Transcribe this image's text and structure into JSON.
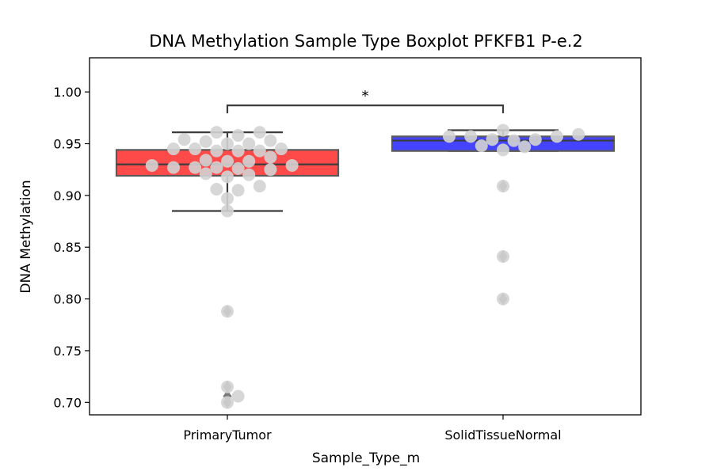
{
  "chart_data": {
    "type": "boxplot",
    "title": "DNA Methylation Sample Type Boxplot PFKFB1 P-e.2",
    "xlabel": "Sample_Type_m",
    "ylabel": "DNA Methylation",
    "ylim": [
      0.688,
      1.033
    ],
    "yticks": [
      "0.70",
      "0.75",
      "0.80",
      "0.85",
      "0.90",
      "0.95",
      "1.00"
    ],
    "categories": [
      "PrimaryTumor",
      "SolidTissueNormal"
    ],
    "grid": false,
    "boxes": [
      {
        "category": "PrimaryTumor",
        "color": "#ff4a4a",
        "q1": 0.919,
        "median": 0.93,
        "q3": 0.944,
        "whisker_low": 0.885,
        "whisker_high": 0.961,
        "outliers": [
          0.788,
          0.715,
          0.706,
          0.7
        ]
      },
      {
        "category": "SolidTissueNormal",
        "color": "#4444ff",
        "q1": 0.943,
        "median": 0.953,
        "q3": 0.957,
        "whisker_low": 0.943,
        "whisker_high": 0.963,
        "outliers": [
          0.909,
          0.841,
          0.8
        ]
      }
    ],
    "points": [
      {
        "category": "PrimaryTumor",
        "values": [
          0.961,
          0.958,
          0.961,
          0.952,
          0.95,
          0.954,
          0.953,
          0.95,
          0.945,
          0.943,
          0.945,
          0.943,
          0.943,
          0.945,
          0.937,
          0.934,
          0.933,
          0.933,
          0.929,
          0.927,
          0.926,
          0.927,
          0.925,
          0.929,
          0.927,
          0.921,
          0.92,
          0.918,
          0.906,
          0.897,
          0.905,
          0.909,
          0.885,
          0.788,
          0.715,
          0.706,
          0.7
        ]
      },
      {
        "category": "SolidTissueNormal",
        "values": [
          0.957,
          0.959,
          0.963,
          0.957,
          0.957,
          0.953,
          0.954,
          0.954,
          0.947,
          0.948,
          0.944,
          0.909,
          0.841,
          0.8
        ]
      }
    ],
    "point_color": "#d3d3d3",
    "significance": {
      "from": "PrimaryTumor",
      "to": "SolidTissueNormal",
      "y": 0.987,
      "label": "*"
    }
  }
}
